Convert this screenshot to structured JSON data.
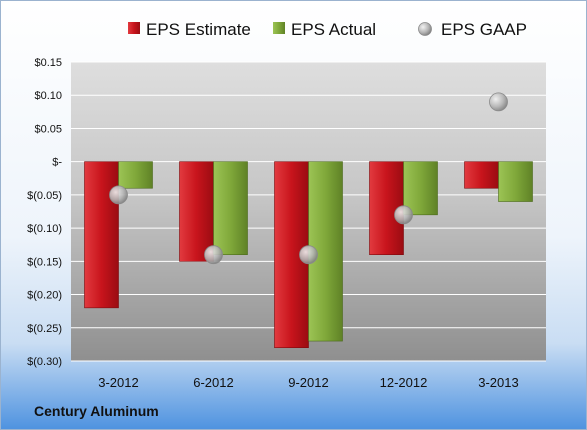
{
  "company": "Century Aluminum",
  "chart_data": {
    "type": "bar",
    "categories": [
      "3-2012",
      "6-2012",
      "9-2012",
      "12-2012",
      "3-2013"
    ],
    "series": [
      {
        "name": "EPS Estimate",
        "values": [
          -0.22,
          -0.15,
          -0.28,
          -0.14,
          -0.04
        ],
        "color": "#c8141c"
      },
      {
        "name": "EPS Actual",
        "values": [
          -0.04,
          -0.14,
          -0.27,
          -0.08,
          -0.06
        ],
        "color": "#80a83a"
      },
      {
        "name": "EPS GAAP",
        "values": [
          -0.05,
          -0.14,
          -0.14,
          -0.08,
          0.09
        ],
        "color": "#b0b0b0",
        "marker": "circle"
      }
    ],
    "ylim": [
      -0.3,
      0.15
    ],
    "yticks": [
      0.15,
      0.1,
      0.05,
      0,
      -0.05,
      -0.1,
      -0.15,
      -0.2,
      -0.25,
      -0.3
    ],
    "ytick_labels": [
      "$0.15",
      "$0.10",
      "$0.05",
      "$-",
      "$(0.05)",
      "$(0.10)",
      "$(0.15)",
      "$(0.20)",
      "$(0.25)",
      "$(0.30)"
    ],
    "grid": true,
    "legend": "top"
  }
}
